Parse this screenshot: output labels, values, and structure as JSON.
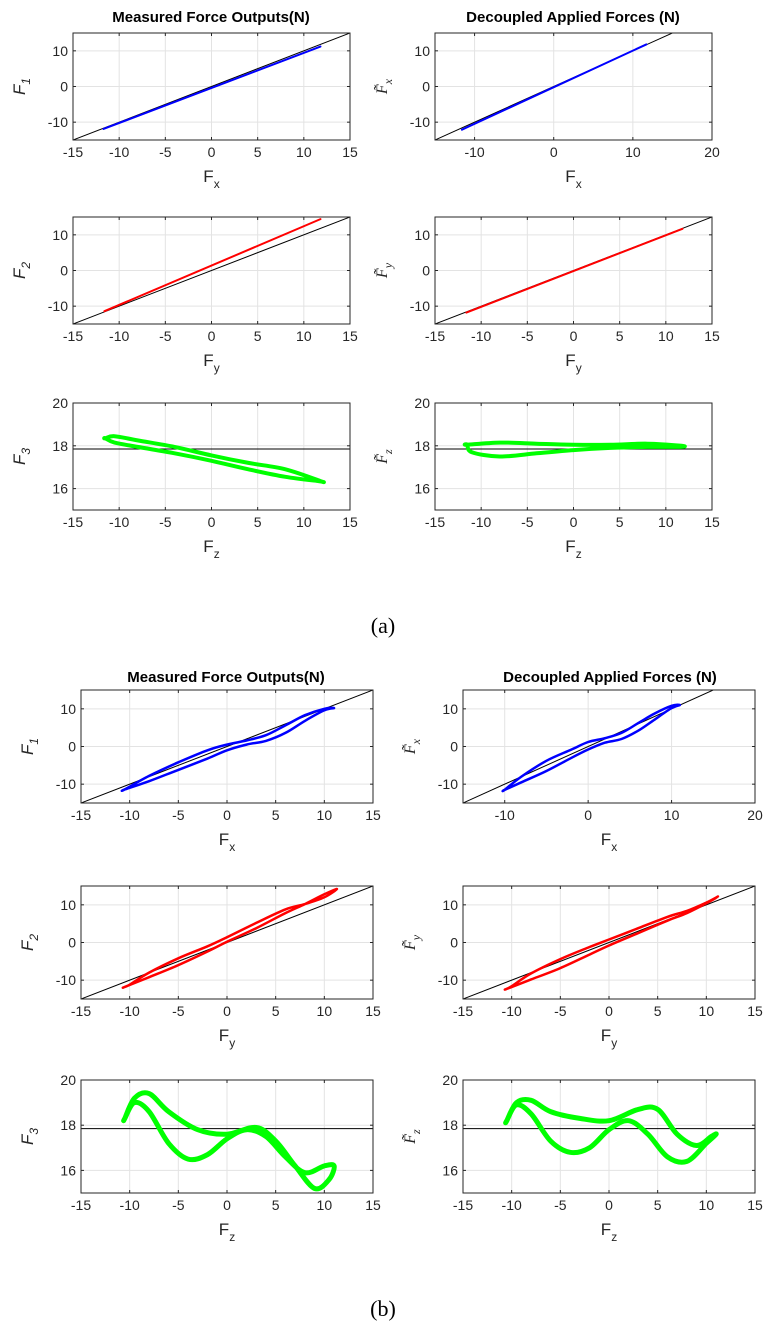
{
  "figure": {
    "panel_labels": [
      "(a)",
      "(b)"
    ],
    "column_titles": [
      "Measured Force Outputs(N)",
      "Decoupled Applied Forces (N)"
    ]
  },
  "colors": {
    "x": "#0000ff",
    "y": "#ff0000",
    "z": "#00ff00",
    "reference": "#000000"
  },
  "chart_data": [
    {
      "id": "a-left-1",
      "type": "line",
      "group": "a",
      "title": "Measured Force Outputs(N)",
      "xlabel": "F_x",
      "ylabel": "F_1",
      "xlim": [
        -15,
        15
      ],
      "ylim": [
        -15,
        15
      ],
      "xticks": [
        -15,
        -10,
        -5,
        0,
        5,
        10,
        15
      ],
      "yticks": [
        -10,
        0,
        10
      ],
      "grid": true,
      "reference": {
        "type": "y=x"
      },
      "series": [
        {
          "color": "blue",
          "shape": "line",
          "width": 2,
          "x": [
            -11.7,
            11.8
          ],
          "y": [
            -11.9,
            11.2
          ]
        }
      ]
    },
    {
      "id": "a-right-1",
      "type": "line",
      "group": "a",
      "title": "Decoupled Applied Forces (N)",
      "xlabel": "F_x",
      "ylabel": "F̃_x",
      "xlim": [
        -15,
        20
      ],
      "ylim": [
        -15,
        15
      ],
      "xticks": [
        -10,
        0,
        10,
        20
      ],
      "yticks": [
        -10,
        0,
        10
      ],
      "grid": true,
      "reference": {
        "type": "y=x"
      },
      "series": [
        {
          "color": "blue",
          "shape": "line",
          "width": 2,
          "x": [
            -11.6,
            11.7
          ],
          "y": [
            -12.1,
            11.8
          ]
        }
      ]
    },
    {
      "id": "a-left-2",
      "type": "line",
      "group": "a",
      "title": "",
      "xlabel": "F_y",
      "ylabel": "F_2",
      "xlim": [
        -15,
        15
      ],
      "ylim": [
        -15,
        15
      ],
      "xticks": [
        -15,
        -10,
        -5,
        0,
        5,
        10,
        15
      ],
      "yticks": [
        -10,
        0,
        10
      ],
      "grid": true,
      "reference": {
        "type": "y=x"
      },
      "series": [
        {
          "color": "red",
          "shape": "line",
          "width": 2,
          "x": [
            -11.6,
            11.8
          ],
          "y": [
            -11.4,
            14.4
          ]
        }
      ]
    },
    {
      "id": "a-right-2",
      "type": "line",
      "group": "a",
      "title": "",
      "xlabel": "F_y",
      "ylabel": "F̃_y",
      "xlim": [
        -15,
        15
      ],
      "ylim": [
        -15,
        15
      ],
      "xticks": [
        -15,
        -10,
        -5,
        0,
        5,
        10,
        15
      ],
      "yticks": [
        -10,
        0,
        10
      ],
      "grid": true,
      "reference": {
        "type": "y=x"
      },
      "series": [
        {
          "color": "red",
          "shape": "line",
          "width": 2,
          "x": [
            -11.6,
            11.8
          ],
          "y": [
            -11.8,
            11.7
          ]
        }
      ]
    },
    {
      "id": "a-left-3",
      "type": "line",
      "group": "a",
      "title": "",
      "xlabel": "F_z",
      "ylabel": "F_3",
      "xlim": [
        -15,
        15
      ],
      "ylim": [
        15,
        20
      ],
      "xticks": [
        -15,
        -10,
        -5,
        0,
        5,
        10,
        15
      ],
      "yticks": [
        16,
        18,
        20
      ],
      "grid": true,
      "reference": {
        "type": "horizontal",
        "y": 17.85
      },
      "series": [
        {
          "color": "green",
          "shape": "loop",
          "width": 4,
          "x": [
            -11.5,
            -10.5,
            -8,
            -4,
            0,
            4,
            8,
            11.8,
            11.6,
            8,
            4,
            0,
            -4,
            -8,
            -10.5,
            -11.5
          ],
          "y": [
            18.35,
            18.45,
            18.25,
            17.95,
            17.55,
            17.2,
            16.9,
            16.35,
            16.35,
            16.55,
            16.9,
            17.3,
            17.65,
            17.95,
            18.15,
            18.35
          ]
        }
      ]
    },
    {
      "id": "a-right-3",
      "type": "line",
      "group": "a",
      "title": "",
      "xlabel": "F_z",
      "ylabel": "F̃_z",
      "xlim": [
        -15,
        15
      ],
      "ylim": [
        15,
        20
      ],
      "xticks": [
        -15,
        -10,
        -5,
        0,
        5,
        10,
        15
      ],
      "yticks": [
        16,
        18,
        20
      ],
      "grid": true,
      "reference": {
        "type": "horizontal",
        "y": 17.85
      },
      "series": [
        {
          "color": "green",
          "shape": "loop",
          "width": 4,
          "x": [
            -11.5,
            -8,
            -4,
            0,
            4,
            8,
            11.7,
            11.5,
            8,
            4,
            0,
            -4,
            -8,
            -11,
            -11.5
          ],
          "y": [
            18.05,
            18.15,
            18.1,
            18.05,
            18.05,
            18.1,
            18.0,
            17.95,
            17.95,
            17.9,
            17.8,
            17.65,
            17.5,
            17.7,
            18.05
          ]
        }
      ]
    },
    {
      "id": "b-left-1",
      "type": "line",
      "group": "b",
      "title": "Measured Force Outputs(N)",
      "xlabel": "F_x",
      "ylabel": "F_1",
      "xlim": [
        -15,
        15
      ],
      "ylim": [
        -15,
        15
      ],
      "xticks": [
        -15,
        -10,
        -5,
        0,
        5,
        10,
        15
      ],
      "yticks": [
        -10,
        0,
        10
      ],
      "grid": true,
      "reference": {
        "type": "y=x"
      },
      "series": [
        {
          "color": "blue",
          "shape": "loop",
          "width": 2.5,
          "x": [
            -10.5,
            -8,
            -5,
            -2,
            0,
            2,
            4,
            6,
            8,
            10,
            11,
            10,
            8,
            6,
            4,
            2,
            0,
            -2,
            -5,
            -8,
            -10.5
          ],
          "y": [
            -11.4,
            -9.2,
            -6.2,
            -3.2,
            -1.0,
            0.5,
            1.5,
            3.6,
            6.8,
            9.6,
            10.2,
            10.0,
            8.3,
            5.6,
            3.0,
            1.6,
            0.5,
            -1.0,
            -4.2,
            -7.8,
            -11.4
          ]
        }
      ]
    },
    {
      "id": "b-right-1",
      "type": "line",
      "group": "b",
      "title": "Decoupled Applied Forces (N)",
      "xlabel": "F_x",
      "ylabel": "F̃_x",
      "xlim": [
        -15,
        20
      ],
      "ylim": [
        -15,
        15
      ],
      "xticks": [
        -10,
        0,
        10,
        20
      ],
      "yticks": [
        -10,
        0,
        10
      ],
      "grid": true,
      "reference": {
        "type": "y=x"
      },
      "series": [
        {
          "color": "blue",
          "shape": "loop",
          "width": 2.5,
          "x": [
            -10,
            -8,
            -5,
            -2,
            0,
            2,
            4,
            6,
            8,
            10,
            11,
            10,
            8,
            6,
            4,
            2,
            0,
            -2,
            -5,
            -8,
            -10
          ],
          "y": [
            -11.5,
            -9.5,
            -6.5,
            -3.0,
            -0.8,
            1.0,
            2.0,
            4.2,
            7.2,
            10.2,
            11.0,
            10.8,
            8.8,
            6.2,
            3.6,
            2.2,
            1.2,
            -0.8,
            -3.8,
            -8.0,
            -11.5
          ]
        }
      ]
    },
    {
      "id": "b-left-2",
      "type": "line",
      "group": "b",
      "title": "",
      "xlabel": "F_y",
      "ylabel": "F_2",
      "xlim": [
        -15,
        15
      ],
      "ylim": [
        -15,
        15
      ],
      "xticks": [
        -15,
        -10,
        -5,
        0,
        5,
        10,
        15
      ],
      "yticks": [
        -10,
        0,
        10
      ],
      "grid": true,
      "reference": {
        "type": "y=x"
      },
      "series": [
        {
          "color": "red",
          "shape": "loop",
          "width": 2.5,
          "x": [
            -10.5,
            -8,
            -5,
            -2,
            0,
            3,
            6,
            8,
            10,
            11.3,
            10,
            8,
            6,
            3,
            0,
            -2,
            -5,
            -8,
            -10,
            -10.5
          ],
          "y": [
            -11.8,
            -9.2,
            -6.0,
            -2.4,
            0.2,
            3.8,
            7.8,
            10.2,
            12.8,
            14.2,
            12.0,
            10.2,
            8.8,
            5.2,
            1.4,
            -1.0,
            -4.2,
            -8.0,
            -11.2,
            -11.8
          ]
        }
      ]
    },
    {
      "id": "b-right-2",
      "type": "line",
      "group": "b",
      "title": "",
      "xlabel": "F_y",
      "ylabel": "F̃_y",
      "xlim": [
        -15,
        15
      ],
      "ylim": [
        -15,
        15
      ],
      "xticks": [
        -15,
        -10,
        -5,
        0,
        5,
        10,
        15
      ],
      "yticks": [
        -10,
        0,
        10
      ],
      "grid": true,
      "reference": {
        "type": "y=x"
      },
      "series": [
        {
          "color": "red",
          "shape": "loop",
          "width": 2.5,
          "x": [
            -10.5,
            -8,
            -5,
            -2,
            0,
            3,
            6,
            8,
            10,
            11.2,
            10,
            8,
            6,
            3,
            0,
            -2,
            -5,
            -8,
            -10,
            -10.5
          ],
          "y": [
            -12.3,
            -9.8,
            -6.8,
            -3.2,
            -0.8,
            2.5,
            5.8,
            7.8,
            10.4,
            12.2,
            10.6,
            8.4,
            6.8,
            3.8,
            0.8,
            -1.2,
            -4.4,
            -8.2,
            -11.6,
            -12.3
          ]
        }
      ]
    },
    {
      "id": "b-left-3",
      "type": "line",
      "group": "b",
      "title": "",
      "xlabel": "F_z",
      "ylabel": "F_3",
      "xlim": [
        -15,
        15
      ],
      "ylim": [
        15,
        20
      ],
      "xticks": [
        -15,
        -10,
        -5,
        0,
        5,
        10,
        15
      ],
      "yticks": [
        16,
        18,
        20
      ],
      "grid": true,
      "reference": {
        "type": "horizontal",
        "y": 17.85
      },
      "series": [
        {
          "color": "green",
          "shape": "loop",
          "width": 5,
          "x": [
            -10.5,
            -9.5,
            -8,
            -6,
            -3,
            0,
            3,
            5,
            7,
            9,
            10.5,
            11,
            10,
            8,
            6,
            4,
            2,
            0,
            -2,
            -4,
            -6,
            -8,
            -9.5,
            -10.5
          ],
          "y": [
            18.3,
            19.2,
            19.4,
            18.6,
            17.8,
            17.6,
            17.9,
            17.3,
            16.2,
            15.2,
            15.6,
            16.2,
            16.2,
            15.9,
            16.6,
            17.5,
            17.8,
            17.4,
            16.7,
            16.5,
            17.2,
            18.6,
            19.0,
            18.3
          ]
        }
      ]
    },
    {
      "id": "b-right-3",
      "type": "line",
      "group": "b",
      "title": "",
      "xlabel": "F_z",
      "ylabel": "F̃_z",
      "xlim": [
        -15,
        15
      ],
      "ylim": [
        15,
        20
      ],
      "xticks": [
        -15,
        -10,
        -5,
        0,
        5,
        10,
        15
      ],
      "yticks": [
        16,
        18,
        20
      ],
      "grid": true,
      "reference": {
        "type": "horizontal",
        "y": 17.85
      },
      "series": [
        {
          "color": "green",
          "shape": "loop",
          "width": 5,
          "x": [
            -10.5,
            -9.5,
            -8,
            -6,
            -3,
            0,
            3,
            5,
            7,
            9,
            10.5,
            11,
            10,
            8,
            6,
            4,
            2,
            0,
            -2,
            -4,
            -6,
            -8,
            -9.5,
            -10.5
          ],
          "y": [
            18.2,
            19.0,
            19.1,
            18.6,
            18.3,
            18.2,
            18.7,
            18.7,
            17.6,
            17.1,
            17.5,
            17.6,
            17.2,
            16.4,
            16.6,
            17.6,
            18.2,
            17.8,
            17.0,
            16.8,
            17.3,
            18.5,
            18.9,
            18.2
          ]
        }
      ]
    }
  ]
}
